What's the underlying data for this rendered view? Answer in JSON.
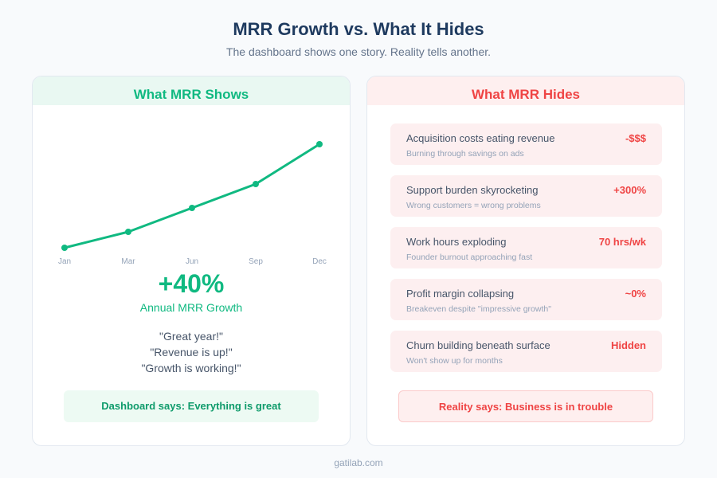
{
  "title": "MRR Growth vs. What It Hides",
  "subtitle": "The dashboard shows one story. Reality tells another.",
  "left": {
    "heading": "What MRR Shows",
    "big_value": "+40%",
    "big_label": "Annual MRR Growth",
    "quotes": [
      "\"Great year!\"",
      "\"Revenue is up!\"",
      "\"Growth is working!\""
    ],
    "verdict": "Dashboard says: Everything is great"
  },
  "chart_data": {
    "type": "line",
    "categories": [
      "Jan",
      "Mar",
      "Jun",
      "Sep",
      "Dec"
    ],
    "values": [
      0,
      20,
      50,
      80,
      130
    ],
    "title": "",
    "xlabel": "",
    "ylabel": "",
    "grid": false,
    "color": "#10b981"
  },
  "right": {
    "heading": "What MRR Hides",
    "items": [
      {
        "title": "Acquisition costs eating revenue",
        "sub": "Burning through savings on ads",
        "value": "-$$$"
      },
      {
        "title": "Support burden skyrocketing",
        "sub": "Wrong customers = wrong problems",
        "value": "+300%"
      },
      {
        "title": "Work hours exploding",
        "sub": "Founder burnout approaching fast",
        "value": "70 hrs/wk"
      },
      {
        "title": "Profit margin collapsing",
        "sub": "Breakeven despite \"impressive growth\"",
        "value": "~0%"
      },
      {
        "title": "Churn building beneath surface",
        "sub": "Won't show up for months",
        "value": "Hidden"
      }
    ],
    "verdict": "Reality says: Business is in trouble"
  },
  "footer": "gatilab.com"
}
